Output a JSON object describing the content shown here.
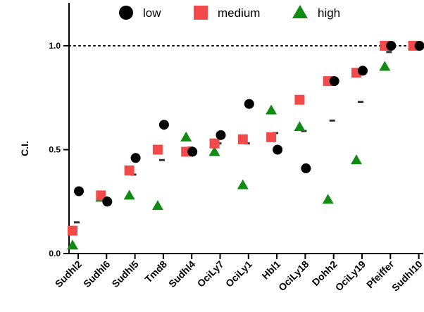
{
  "chart_data": {
    "type": "scatter",
    "title": "",
    "xlabel": "",
    "ylabel": "C.I.",
    "ylim": [
      0,
      1.2
    ],
    "yticks": [
      0.0,
      0.5,
      1.0
    ],
    "ytick_labels": [
      "0.0",
      "0.5",
      "1.0"
    ],
    "reference_line": {
      "y": 1.0,
      "style": "dotted"
    },
    "legend_position": "top",
    "categories": [
      "Sudhl2",
      "Sudhl6",
      "Sudhl5",
      "Tmd8",
      "Sudhl4",
      "OciLy7",
      "OciLy1",
      "Hbl1",
      "OciLy18",
      "Dohh2",
      "OciLy19",
      "Pfeiffer",
      "Sudhl10"
    ],
    "series": [
      {
        "name": "low",
        "marker": "circle",
        "color": "#000000",
        "values": [
          0.3,
          0.25,
          0.46,
          0.62,
          0.49,
          0.57,
          0.72,
          0.5,
          0.41,
          0.83,
          0.88,
          1.0,
          1.0
        ]
      },
      {
        "name": "medium",
        "marker": "square",
        "color": "#f24a4a",
        "values": [
          0.11,
          0.28,
          0.4,
          0.5,
          0.49,
          0.53,
          0.55,
          0.56,
          0.74,
          0.83,
          0.87,
          1.0,
          1.0
        ]
      },
      {
        "name": "high",
        "marker": "triangle",
        "color": "#138a13",
        "values": [
          0.04,
          0.27,
          0.28,
          0.23,
          0.56,
          0.49,
          0.33,
          0.69,
          0.61,
          0.26,
          0.45,
          0.9,
          null
        ]
      }
    ],
    "mean": {
      "marker": "dash",
      "color": "#333333",
      "values": [
        0.15,
        0.27,
        0.38,
        0.45,
        0.51,
        0.53,
        0.53,
        0.58,
        0.59,
        0.64,
        0.73,
        0.97,
        1.0
      ]
    }
  }
}
